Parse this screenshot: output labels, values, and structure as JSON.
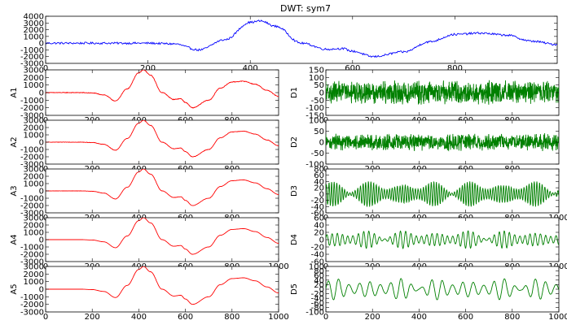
{
  "figure_title": "DWT: sym7",
  "colors": {
    "signal": "#0000ff",
    "approx": "#ff0000",
    "detail": "#008000"
  },
  "chart_data": [
    {
      "id": "signal",
      "type": "line",
      "title": "DWT: sym7",
      "ylabel": "",
      "xlim": [
        0,
        1000
      ],
      "ylim": [
        -3000,
        4000
      ],
      "yticks": [
        4000,
        3000,
        2000,
        1000,
        0,
        -1000,
        -2000,
        -3000
      ],
      "xticks": [
        0,
        200,
        400,
        600,
        800
      ],
      "color": "#0000ff",
      "x": [
        0,
        50,
        100,
        150,
        200,
        250,
        300,
        350,
        400,
        420,
        450,
        500,
        550,
        580,
        600,
        640,
        700,
        750,
        800,
        850,
        900,
        950,
        1000
      ],
      "y": [
        0,
        0,
        0,
        0,
        0,
        -100,
        -1000,
        500,
        3100,
        3300,
        2500,
        0,
        -900,
        -800,
        -1200,
        -2000,
        -1300,
        200,
        1300,
        1500,
        1200,
        300,
        -200
      ],
      "noise": 150
    },
    {
      "id": "A1",
      "type": "line",
      "ylabel": "A1",
      "xlim": [
        0,
        1000
      ],
      "ylim": [
        -3000,
        3000
      ],
      "yticks": [
        3000,
        2000,
        1000,
        0,
        -1000,
        -2000,
        -3000
      ],
      "xticks": [
        0,
        200,
        400,
        600,
        800
      ],
      "color": "#ff0000",
      "x": [
        0,
        50,
        100,
        150,
        200,
        250,
        300,
        350,
        400,
        420,
        450,
        500,
        550,
        580,
        600,
        630,
        700,
        750,
        800,
        850,
        900,
        950,
        1000
      ],
      "y": [
        0,
        0,
        0,
        0,
        -50,
        -300,
        -1100,
        500,
        2600,
        3000,
        2300,
        0,
        -900,
        -800,
        -1300,
        -2000,
        -1000,
        600,
        1400,
        1500,
        1100,
        300,
        -500
      ],
      "noise": 40
    },
    {
      "id": "A2",
      "type": "line",
      "ylabel": "A2",
      "xlim": [
        0,
        1000
      ],
      "ylim": [
        -3000,
        3000
      ],
      "yticks": [
        3000,
        2000,
        1000,
        0,
        -1000,
        -2000,
        -3000
      ],
      "xticks": [
        0,
        200,
        400,
        600,
        800
      ],
      "color": "#ff0000",
      "x": [
        0,
        50,
        100,
        150,
        200,
        250,
        300,
        350,
        400,
        420,
        450,
        500,
        550,
        580,
        600,
        630,
        700,
        750,
        800,
        850,
        900,
        950,
        1000
      ],
      "y": [
        0,
        0,
        0,
        0,
        -50,
        -300,
        -1100,
        500,
        2600,
        3000,
        2300,
        0,
        -900,
        -800,
        -1300,
        -2000,
        -1000,
        600,
        1400,
        1500,
        1100,
        300,
        -500
      ],
      "noise": 25
    },
    {
      "id": "A3",
      "type": "line",
      "ylabel": "A3",
      "xlim": [
        0,
        1000
      ],
      "ylim": [
        -3000,
        3000
      ],
      "yticks": [
        3000,
        2000,
        1000,
        0,
        -1000,
        -2000,
        -3000
      ],
      "xticks": [
        0,
        200,
        400,
        600,
        800
      ],
      "color": "#ff0000",
      "x": [
        0,
        50,
        100,
        150,
        200,
        250,
        300,
        350,
        400,
        420,
        450,
        500,
        550,
        580,
        600,
        630,
        700,
        750,
        800,
        850,
        900,
        950,
        1000
      ],
      "y": [
        0,
        0,
        0,
        0,
        -50,
        -300,
        -1100,
        500,
        2600,
        3000,
        2300,
        0,
        -900,
        -800,
        -1300,
        -2000,
        -1000,
        600,
        1400,
        1500,
        1100,
        300,
        -500
      ],
      "noise": 15
    },
    {
      "id": "A4",
      "type": "line",
      "ylabel": "A4",
      "xlim": [
        0,
        1000
      ],
      "ylim": [
        -3000,
        3000
      ],
      "yticks": [
        3000,
        2000,
        1000,
        0,
        -1000,
        -2000,
        -3000
      ],
      "xticks": [
        0,
        200,
        400,
        600,
        800,
        1000
      ],
      "color": "#ff0000",
      "x": [
        0,
        50,
        100,
        150,
        200,
        250,
        300,
        350,
        400,
        420,
        450,
        500,
        550,
        580,
        600,
        630,
        700,
        750,
        800,
        850,
        900,
        950,
        1000
      ],
      "y": [
        0,
        0,
        0,
        0,
        -50,
        -300,
        -1100,
        500,
        2600,
        3000,
        2300,
        0,
        -900,
        -800,
        -1300,
        -2000,
        -1000,
        600,
        1400,
        1500,
        1100,
        300,
        -500
      ],
      "noise": 0
    },
    {
      "id": "A5",
      "type": "line",
      "ylabel": "A5",
      "xlim": [
        0,
        1000
      ],
      "ylim": [
        -3000,
        3000
      ],
      "yticks": [
        3000,
        2000,
        1000,
        0,
        -1000,
        -2000,
        -3000
      ],
      "xticks": [
        0,
        200,
        400,
        600,
        800,
        1000
      ],
      "color": "#ff0000",
      "x": [
        0,
        50,
        100,
        150,
        200,
        250,
        300,
        350,
        400,
        420,
        450,
        500,
        550,
        580,
        600,
        630,
        700,
        750,
        800,
        850,
        900,
        950,
        1000
      ],
      "y": [
        0,
        0,
        0,
        0,
        -50,
        -300,
        -1100,
        500,
        2600,
        3000,
        2300,
        0,
        -900,
        -800,
        -1300,
        -2000,
        -1000,
        600,
        1400,
        1500,
        1100,
        300,
        -500
      ],
      "noise": 0
    },
    {
      "id": "D1",
      "type": "line",
      "ylabel": "D1",
      "xlim": [
        0,
        1000
      ],
      "ylim": [
        -150,
        150
      ],
      "yticks": [
        150,
        100,
        50,
        0,
        -50,
        -100,
        -150
      ],
      "xticks": [
        0,
        200,
        400,
        600,
        800
      ],
      "color": "#008000",
      "oscillation": {
        "amplitude": 70,
        "period": 3,
        "smooth": false
      }
    },
    {
      "id": "D2",
      "type": "line",
      "ylabel": "D2",
      "xlim": [
        0,
        1000
      ],
      "ylim": [
        -100,
        100
      ],
      "yticks": [
        100,
        50,
        0,
        -50,
        -100
      ],
      "xticks": [
        0,
        200,
        400,
        600,
        800
      ],
      "color": "#008000",
      "oscillation": {
        "amplitude": 35,
        "period": 5,
        "smooth": false
      }
    },
    {
      "id": "D3",
      "type": "line",
      "ylabel": "D3",
      "xlim": [
        0,
        1000
      ],
      "ylim": [
        -60,
        80
      ],
      "yticks": [
        80,
        60,
        40,
        20,
        0,
        -20,
        -40,
        -60
      ],
      "xticks": [
        0,
        200,
        400,
        600,
        800,
        1000
      ],
      "color": "#008000",
      "oscillation": {
        "amplitude": 30,
        "period": 10,
        "smooth": true
      }
    },
    {
      "id": "D4",
      "type": "line",
      "ylabel": "D4",
      "xlim": [
        0,
        1000
      ],
      "ylim": [
        -60,
        60
      ],
      "yticks": [
        60,
        40,
        20,
        0,
        -20,
        -40,
        -60
      ],
      "xticks": [
        0,
        200,
        400,
        600,
        800,
        1000
      ],
      "color": "#008000",
      "oscillation": {
        "amplitude": 18,
        "period": 20,
        "smooth": true
      }
    },
    {
      "id": "D5",
      "type": "line",
      "ylabel": "D5",
      "xlim": [
        0,
        1000
      ],
      "ylim": [
        -100,
        100
      ],
      "yticks": [
        100,
        80,
        60,
        40,
        20,
        0,
        -20,
        -40,
        -60,
        -80,
        -100
      ],
      "xticks": [
        0,
        200,
        400,
        600,
        800,
        1000
      ],
      "color": "#008000",
      "oscillation": {
        "amplitude": 35,
        "period": 40,
        "smooth": true
      }
    }
  ]
}
